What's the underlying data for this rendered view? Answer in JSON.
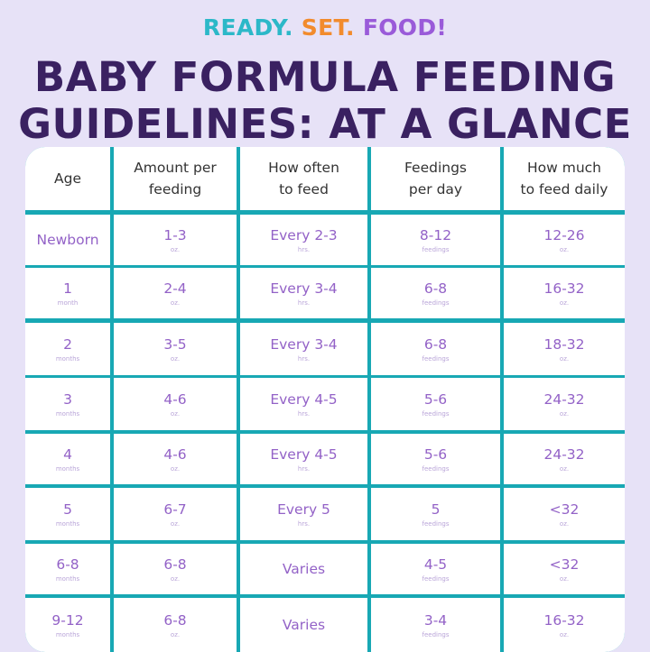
{
  "brand": {
    "ready": "READY.",
    "set": "SET.",
    "food": "FOOD!"
  },
  "title": {
    "line1": "BABY FORMULA FEEDING",
    "line2": "GUIDELINES: AT A GLANCE"
  },
  "table": {
    "headers": [
      [
        "Age"
      ],
      [
        "Amount per",
        "feeding"
      ],
      [
        "How often",
        "to feed"
      ],
      [
        "Feedings",
        "per day"
      ],
      [
        "How much",
        "to feed daily"
      ]
    ],
    "rows": [
      [
        {
          "v": "Newborn",
          "u": ""
        },
        {
          "v": "1-3",
          "u": "oz."
        },
        {
          "v": "Every 2-3",
          "u": "hrs."
        },
        {
          "v": "8-12",
          "u": "feedings"
        },
        {
          "v": "12-26",
          "u": "oz."
        }
      ],
      [
        {
          "v": "1",
          "u": "month"
        },
        {
          "v": "2-4",
          "u": "oz."
        },
        {
          "v": "Every 3-4",
          "u": "hrs."
        },
        {
          "v": "6-8",
          "u": "feedings"
        },
        {
          "v": "16-32",
          "u": "oz."
        }
      ],
      [
        {
          "v": "2",
          "u": "months"
        },
        {
          "v": "3-5",
          "u": "oz."
        },
        {
          "v": "Every 3-4",
          "u": "hrs."
        },
        {
          "v": "6-8",
          "u": "feedings"
        },
        {
          "v": "18-32",
          "u": "oz."
        }
      ],
      [
        {
          "v": "3",
          "u": "months"
        },
        {
          "v": "4-6",
          "u": "oz."
        },
        {
          "v": "Every 4-5",
          "u": "hrs."
        },
        {
          "v": "5-6",
          "u": "feedings"
        },
        {
          "v": "24-32",
          "u": "oz."
        }
      ],
      [
        {
          "v": "4",
          "u": "months"
        },
        {
          "v": "4-6",
          "u": "oz."
        },
        {
          "v": "Every 4-5",
          "u": "hrs."
        },
        {
          "v": "5-6",
          "u": "feedings"
        },
        {
          "v": "24-32",
          "u": "oz."
        }
      ],
      [
        {
          "v": "5",
          "u": "months"
        },
        {
          "v": "6-7",
          "u": "oz."
        },
        {
          "v": "Every 5",
          "u": "hrs."
        },
        {
          "v": "5",
          "u": "feedings"
        },
        {
          "v": "<32",
          "u": "oz."
        }
      ],
      [
        {
          "v": "6-8",
          "u": "months"
        },
        {
          "v": "6-8",
          "u": "oz."
        },
        {
          "v": "Varies",
          "u": ""
        },
        {
          "v": "4-5",
          "u": "feedings"
        },
        {
          "v": "<32",
          "u": "oz."
        }
      ],
      [
        {
          "v": "9-12",
          "u": "months"
        },
        {
          "v": "6-8",
          "u": "oz."
        },
        {
          "v": "Varies",
          "u": ""
        },
        {
          "v": "3-4",
          "u": "feedings"
        },
        {
          "v": "16-32",
          "u": "oz."
        }
      ]
    ]
  },
  "colors": {
    "background": "#e7e2f7",
    "title": "#3a2161",
    "grid": "#18a8b4",
    "value_text": "#9362c7",
    "brand_ready": "#2cb8c8",
    "brand_set": "#f28b2d",
    "brand_food": "#9a5bd9"
  }
}
